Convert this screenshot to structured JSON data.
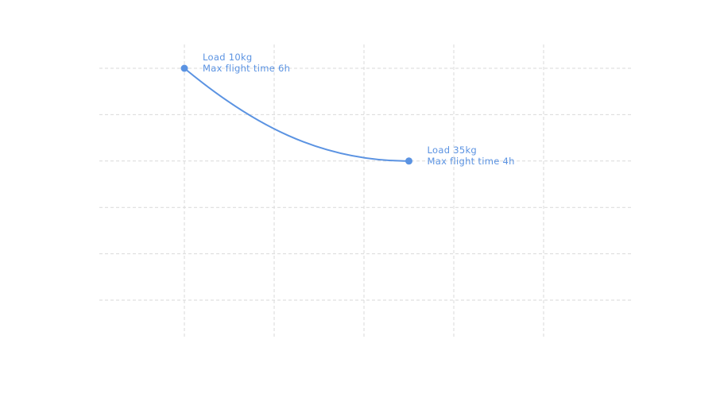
{
  "chart_data": {
    "type": "line",
    "title": "",
    "xlabel": "",
    "ylabel": "",
    "xlim": [
      0,
      50
    ],
    "ylim": [
      0,
      7
    ],
    "x_grid_values": [
      10,
      20,
      30,
      40,
      50
    ],
    "y_grid_values": [
      1,
      2,
      3,
      4,
      5,
      6
    ],
    "grid": true,
    "legend": "none",
    "line_style": "smooth",
    "color": "#5b93e2",
    "series": [
      {
        "x": [
          10,
          35
        ],
        "y": [
          6,
          4
        ],
        "point_labels": [
          [
            "Load 10kg",
            "Max flight time 6h"
          ],
          [
            "Load 35kg",
            "Max flight time 4h"
          ]
        ]
      }
    ]
  }
}
